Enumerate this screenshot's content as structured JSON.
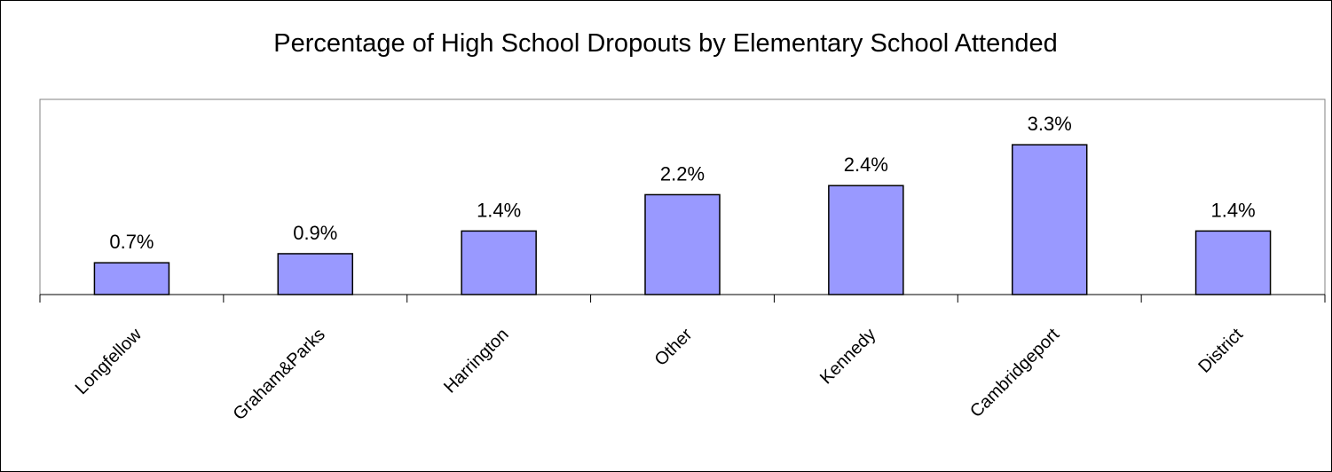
{
  "chart_data": {
    "type": "bar",
    "title": "Percentage of High School Dropouts by Elementary School Attended",
    "xlabel": "",
    "ylabel": "",
    "categories": [
      "Longfellow",
      "Graham&Parks",
      "Harrington",
      "Other",
      "Kennedy",
      "Cambridgeport",
      "District"
    ],
    "values": [
      0.7,
      0.9,
      1.4,
      2.2,
      2.4,
      3.3,
      1.4
    ],
    "data_labels": [
      "0.7%",
      "0.9%",
      "1.4%",
      "2.2%",
      "2.4%",
      "3.3%",
      "1.4%"
    ],
    "ylim": [
      0,
      4.3
    ],
    "grid": false,
    "legend": "none",
    "colors": {
      "bar_fill": "#9999ff",
      "bar_stroke": "#000000",
      "axis": "#000000",
      "plot_border": "#808080",
      "background": "#ffffff"
    }
  }
}
